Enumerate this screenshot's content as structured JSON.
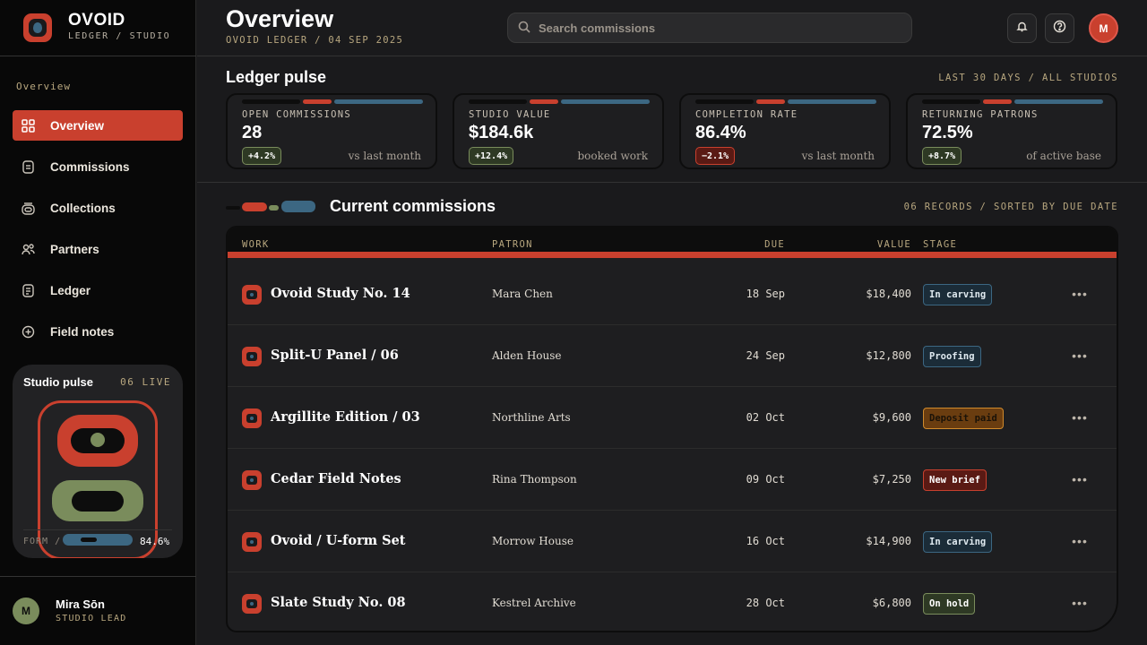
{
  "brand": {
    "name": "OVOID",
    "sub": "LEDGER / STUDIO"
  },
  "sidebar": {
    "section_label": "Overview",
    "items": [
      {
        "label": "Overview",
        "icon": "grid-icon",
        "active": true
      },
      {
        "label": "Commissions",
        "icon": "document-icon",
        "active": false
      },
      {
        "label": "Collections",
        "icon": "stack-icon",
        "active": false
      },
      {
        "label": "Partners",
        "icon": "people-icon",
        "active": false
      },
      {
        "label": "Ledger",
        "icon": "ledger-icon",
        "active": false
      },
      {
        "label": "Field notes",
        "icon": "plus-circle-icon",
        "active": false
      }
    ],
    "pulse": {
      "title": "Studio pulse",
      "live": "06 LIVE",
      "form_label": "FORM / 06",
      "percent": "84.6%"
    }
  },
  "user": {
    "initial": "M",
    "name": "Mira Sōn",
    "role": "STUDIO LEAD"
  },
  "header": {
    "title": "Overview",
    "crumb": "OVOID LEDGER / 04 SEP 2025",
    "search_placeholder": "Search commissions",
    "avatar_initial": "M"
  },
  "ledger_pulse": {
    "title": "Ledger pulse",
    "range": "LAST 30 DAYS / ALL STUDIOS",
    "kpis": [
      {
        "label": "OPEN COMMISSIONS",
        "value": "28",
        "delta": "+4.2%",
        "trend": "pos",
        "note": "vs last month"
      },
      {
        "label": "STUDIO VALUE",
        "value": "$184.6k",
        "delta": "+12.4%",
        "trend": "pos",
        "note": "booked work"
      },
      {
        "label": "COMPLETION RATE",
        "value": "86.4%",
        "delta": "−2.1%",
        "trend": "neg",
        "note": "vs last month"
      },
      {
        "label": "RETURNING PATRONS",
        "value": "72.5%",
        "delta": "+8.7%",
        "trend": "pos",
        "note": "of active base"
      }
    ]
  },
  "commissions": {
    "title": "Current commissions",
    "meta": "06 RECORDS / SORTED BY DUE DATE",
    "columns": {
      "work": "WORK",
      "patron": "PATRON",
      "due": "DUE",
      "value": "VALUE",
      "stage": "STAGE"
    },
    "rows": [
      {
        "work": "Ovoid Study No. 14",
        "patron": "Mara Chen",
        "due": "18 Sep",
        "value": "$18,400",
        "stage": "In carving",
        "stage_tone": "blue"
      },
      {
        "work": "Split-U Panel / 06",
        "patron": "Alden House",
        "due": "24 Sep",
        "value": "$12,800",
        "stage": "Proofing",
        "stage_tone": "blue"
      },
      {
        "work": "Argillite Edition / 03",
        "patron": "Northline Arts",
        "due": "02 Oct",
        "value": "$9,600",
        "stage": "Deposit paid",
        "stage_tone": "orange"
      },
      {
        "work": "Cedar Field Notes",
        "patron": "Rina Thompson",
        "due": "09 Oct",
        "value": "$7,250",
        "stage": "New brief",
        "stage_tone": "red"
      },
      {
        "work": "Ovoid / U-form Set",
        "patron": "Morrow House",
        "due": "16 Oct",
        "value": "$14,900",
        "stage": "In carving",
        "stage_tone": "blue"
      },
      {
        "work": "Slate Study No. 08",
        "patron": "Kestrel Archive",
        "due": "28 Oct",
        "value": "$6,800",
        "stage": "On hold",
        "stage_tone": "green"
      }
    ]
  },
  "colors": {
    "accent_red": "#c9402e",
    "accent_blue": "#3c6782",
    "accent_green": "#7a8c5c",
    "accent_orange": "#d08a2c"
  }
}
